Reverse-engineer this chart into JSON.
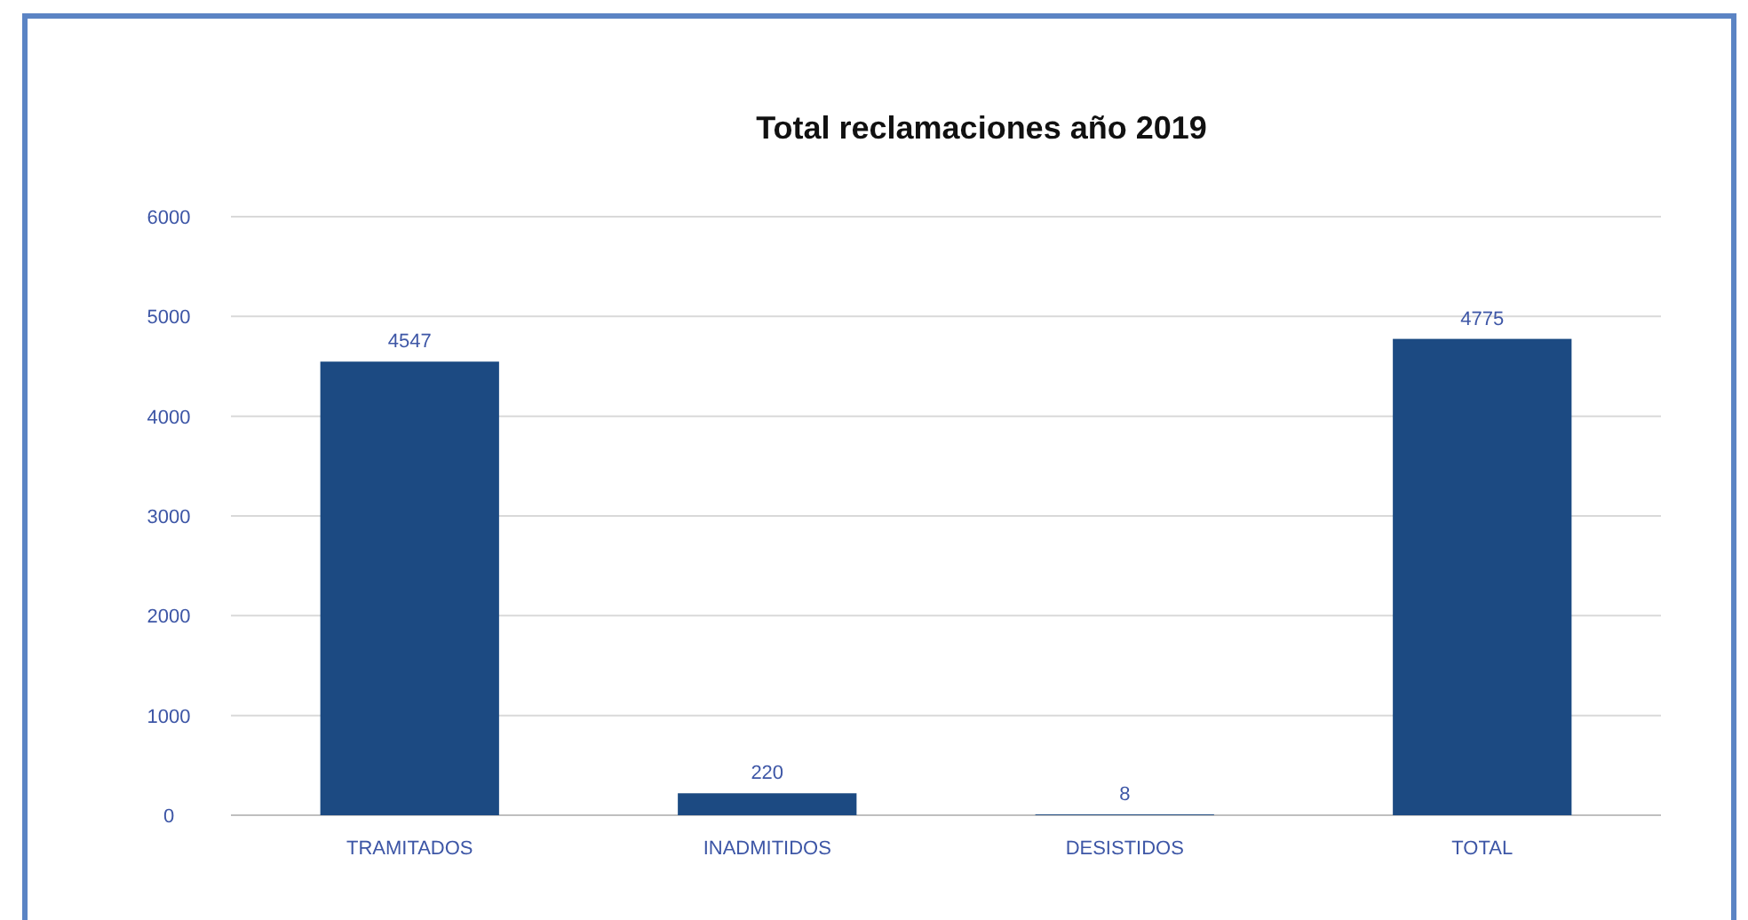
{
  "chart_data": {
    "type": "bar",
    "title": "Total reclamaciones año 2019",
    "categories": [
      "TRAMITADOS",
      "INADMITIDOS",
      "DESISTIDOS",
      "TOTAL"
    ],
    "values": [
      4547,
      220,
      8,
      4775
    ],
    "color": "#1c4a82",
    "ylim": [
      0,
      6000
    ],
    "yticks": [
      0,
      1000,
      2000,
      3000,
      4000,
      5000,
      6000
    ],
    "grid": "y",
    "data_labels": true
  }
}
